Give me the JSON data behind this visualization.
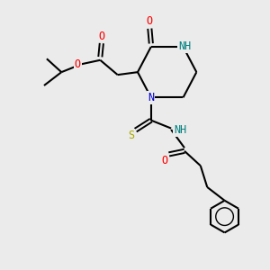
{
  "background_color": "#ebebeb",
  "bond_color": "#000000",
  "atom_colors": {
    "O": "#ff0000",
    "N": "#0000cc",
    "S": "#aaaa00",
    "NH": "#008080",
    "C": "#000000"
  },
  "font_size": 8.5,
  "fig_size": [
    3.0,
    3.0
  ],
  "dpi": 100
}
